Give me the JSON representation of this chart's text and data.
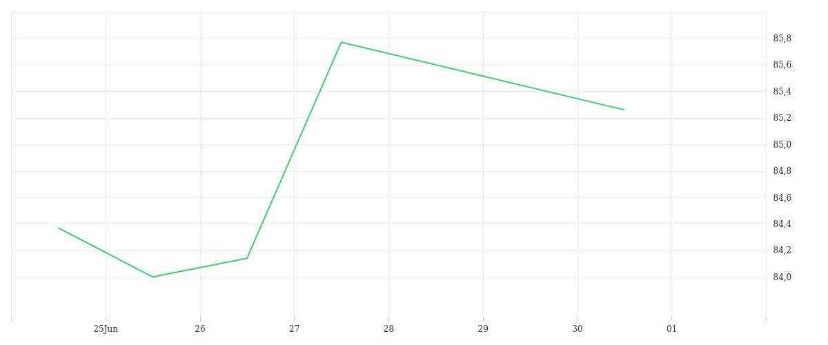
{
  "chart_data": {
    "type": "line",
    "x": [
      "--06-24T12:00",
      "--06-25T12:00",
      "--06-26T12:00",
      "--06-27T12:00",
      "--06-30T12:00"
    ],
    "series": [
      {
        "color": "#4cd07d",
        "values": [
          84.37,
          84.0,
          84.14,
          85.77,
          85.26
        ]
      }
    ],
    "xlim": [
      "--06-24",
      "--07-02"
    ],
    "xticks": [
      {
        "value": "--06-24",
        "label": null
      },
      {
        "value": "--06-25",
        "label": "25Jun"
      },
      {
        "value": "--06-26",
        "label": "26"
      },
      {
        "value": "--06-27",
        "label": "27"
      },
      {
        "value": "--06-28",
        "label": "28"
      },
      {
        "value": "--06-29",
        "label": "29"
      },
      {
        "value": "--06-30",
        "label": "30"
      },
      {
        "value": "--07-01",
        "label": "01"
      },
      {
        "value": "--07-02",
        "label": null
      }
    ],
    "ylim": [
      83.7,
      86.0
    ],
    "yticks": [
      {
        "value": 84.0,
        "label": "84,0"
      },
      {
        "value": 84.2,
        "label": "84,2"
      },
      {
        "value": 84.4,
        "label": "84,4"
      },
      {
        "value": 84.6,
        "label": "84,6"
      },
      {
        "value": 84.8,
        "label": "84,8"
      },
      {
        "value": 85.0,
        "label": "85,0"
      },
      {
        "value": 85.2,
        "label": "85,2"
      },
      {
        "value": 85.4,
        "label": "85,4"
      },
      {
        "value": 85.6,
        "label": "85,6"
      },
      {
        "value": 85.8,
        "label": "85,8"
      },
      {
        "value": 86.0,
        "label": null
      }
    ],
    "grid": true,
    "marker": "none",
    "line_style": "solid"
  }
}
